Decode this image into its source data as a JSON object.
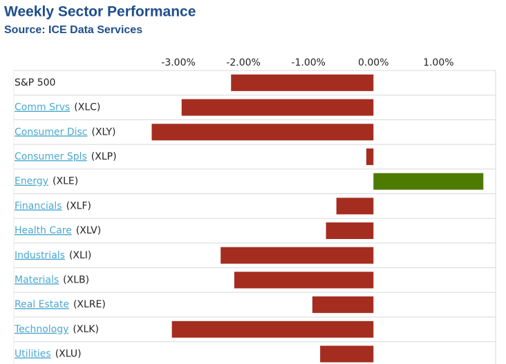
{
  "chart_data": {
    "type": "hbar",
    "title": "Weekly Sector Performance",
    "subtitle": "Source: ICE Data Services",
    "categories": [
      "S&P 500",
      "Comm Srvs",
      "Consumer Disc",
      "Consumer Spls",
      "Energy",
      "Financials",
      "Health Care",
      "Industrials",
      "Materials",
      "Real Estate",
      "Technology",
      "Utilities"
    ],
    "tickers": [
      null,
      "(XLC)",
      "(XLY)",
      "(XLP)",
      "(XLE)",
      "(XLF)",
      "(XLV)",
      "(XLI)",
      "(XLB)",
      "(XLRE)",
      "(XLK)",
      "(XLU)"
    ],
    "values": [
      -2.19,
      -2.95,
      -3.41,
      -0.11,
      1.69,
      -0.57,
      -0.73,
      -2.35,
      -2.14,
      -0.94,
      -3.1,
      -0.82
    ],
    "negative_color": "#a52d1f",
    "positive_color": "#4d7b00",
    "xlim": [
      -3.5,
      1.9
    ],
    "xticks": [
      {
        "value": -3,
        "label": "-3.00%"
      },
      {
        "value": -2,
        "label": "-2.00%"
      },
      {
        "value": -1,
        "label": "-1.00%"
      },
      {
        "value": 0,
        "label": "0.00%"
      },
      {
        "value": 1,
        "label": "1.00%"
      }
    ]
  }
}
